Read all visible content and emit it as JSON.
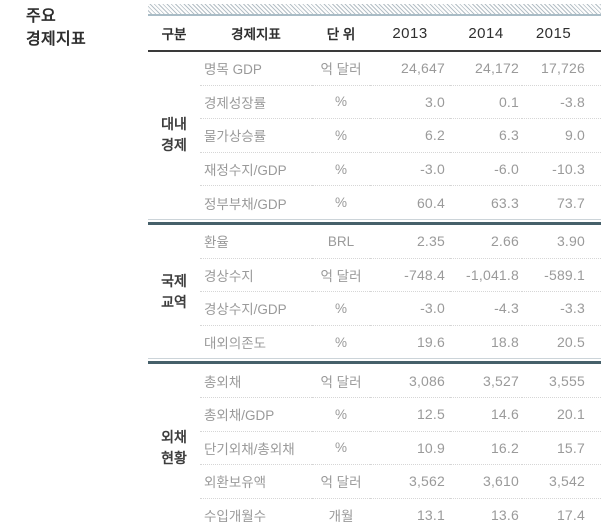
{
  "title": {
    "line1": "주요",
    "line2": "경제지표"
  },
  "colors": {
    "header_text": "#2f2f2f",
    "section_label_text": "#3d3d3d",
    "data_text": "#9a9a9a",
    "header_rule": "#3a3a3a",
    "section_divider_thick": "#46606a",
    "section_divider_thin": "#ccd4d9",
    "row_dotted": "#d6d6d6",
    "hatch_stripe": "#b5c0c7"
  },
  "table": {
    "headers": {
      "category": "구분",
      "indicator": "경제지표",
      "unit": "단 위",
      "years": [
        "2013",
        "2014",
        "2015"
      ]
    },
    "sections": [
      {
        "category_lines": [
          "대내",
          "경제"
        ],
        "rows": [
          {
            "indicator": "명목 GDP",
            "unit": "억 달러",
            "values": [
              "24,647",
              "24,172",
              "17,726"
            ]
          },
          {
            "indicator": "경제성장률",
            "unit": "%",
            "values": [
              "3.0",
              "0.1",
              "-3.8"
            ]
          },
          {
            "indicator": "물가상승률",
            "unit": "%",
            "values": [
              "6.2",
              "6.3",
              "9.0"
            ]
          },
          {
            "indicator": "재정수지/GDP",
            "unit": "%",
            "values": [
              "-3.0",
              "-6.0",
              "-10.3"
            ]
          },
          {
            "indicator": "정부부채/GDP",
            "unit": "%",
            "values": [
              "60.4",
              "63.3",
              "73.7"
            ]
          }
        ]
      },
      {
        "category_lines": [
          "국제",
          "교역"
        ],
        "rows": [
          {
            "indicator": "환율",
            "unit": "BRL",
            "values": [
              "2.35",
              "2.66",
              "3.90"
            ]
          },
          {
            "indicator": "경상수지",
            "unit": "억 달러",
            "values": [
              "-748.4",
              "-1,041.8",
              "-589.1"
            ]
          },
          {
            "indicator": "경상수지/GDP",
            "unit": "%",
            "values": [
              "-3.0",
              "-4.3",
              "-3.3"
            ]
          },
          {
            "indicator": "대외의존도",
            "unit": "%",
            "values": [
              "19.6",
              "18.8",
              "20.5"
            ]
          }
        ]
      },
      {
        "category_lines": [
          "외채",
          "현황"
        ],
        "rows": [
          {
            "indicator": "총외채",
            "unit": "억 달러",
            "values": [
              "3,086",
              "3,527",
              "3,555"
            ]
          },
          {
            "indicator": "총외채/GDP",
            "unit": "%",
            "values": [
              "12.5",
              "14.6",
              "20.1"
            ]
          },
          {
            "indicator": "단기외채/총외채",
            "unit": "%",
            "values": [
              "10.9",
              "16.2",
              "15.7"
            ]
          },
          {
            "indicator": "외환보유액",
            "unit": "억 달러",
            "values": [
              "3,562",
              "3,610",
              "3,542"
            ]
          },
          {
            "indicator": "수입개월수",
            "unit": "개월",
            "values": [
              "13.1",
              "13.6",
              "17.4"
            ]
          }
        ]
      }
    ]
  }
}
